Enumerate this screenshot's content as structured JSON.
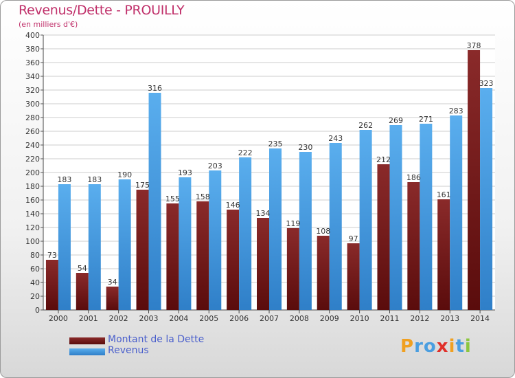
{
  "header": {
    "title": "Revenus/Dette - PROUILLY",
    "subtitle": "(en milliers d'€)"
  },
  "legend": {
    "debt_label": "Montant de la Dette",
    "revenue_label": "Revenus"
  },
  "logo": {
    "text": "Proxiti"
  },
  "colors": {
    "debt": "#7a2020",
    "revenue": "#4a9ee0",
    "title": "#c0306a",
    "legend_text": "#4a5fcc"
  },
  "chart_data": {
    "type": "bar",
    "title": "Revenus/Dette - PROUILLY",
    "subtitle": "(en milliers d'€)",
    "categories": [
      "2000",
      "2001",
      "2002",
      "2003",
      "2004",
      "2005",
      "2006",
      "2007",
      "2008",
      "2009",
      "2010",
      "2011",
      "2012",
      "2013",
      "2014"
    ],
    "series": [
      {
        "name": "Montant de la Dette",
        "values": [
          73,
          54,
          34,
          175,
          155,
          158,
          146,
          134,
          119,
          108,
          97,
          212,
          186,
          161,
          378
        ]
      },
      {
        "name": "Revenus",
        "values": [
          183,
          183,
          190,
          316,
          193,
          203,
          222,
          235,
          230,
          243,
          262,
          269,
          271,
          283,
          323
        ]
      }
    ],
    "ylim": [
      0,
      400
    ],
    "yticks": [
      0,
      20,
      40,
      60,
      80,
      100,
      120,
      140,
      160,
      180,
      200,
      220,
      240,
      260,
      280,
      300,
      320,
      340,
      360,
      380,
      400
    ],
    "grid": true,
    "legend_position": "bottom-left"
  }
}
